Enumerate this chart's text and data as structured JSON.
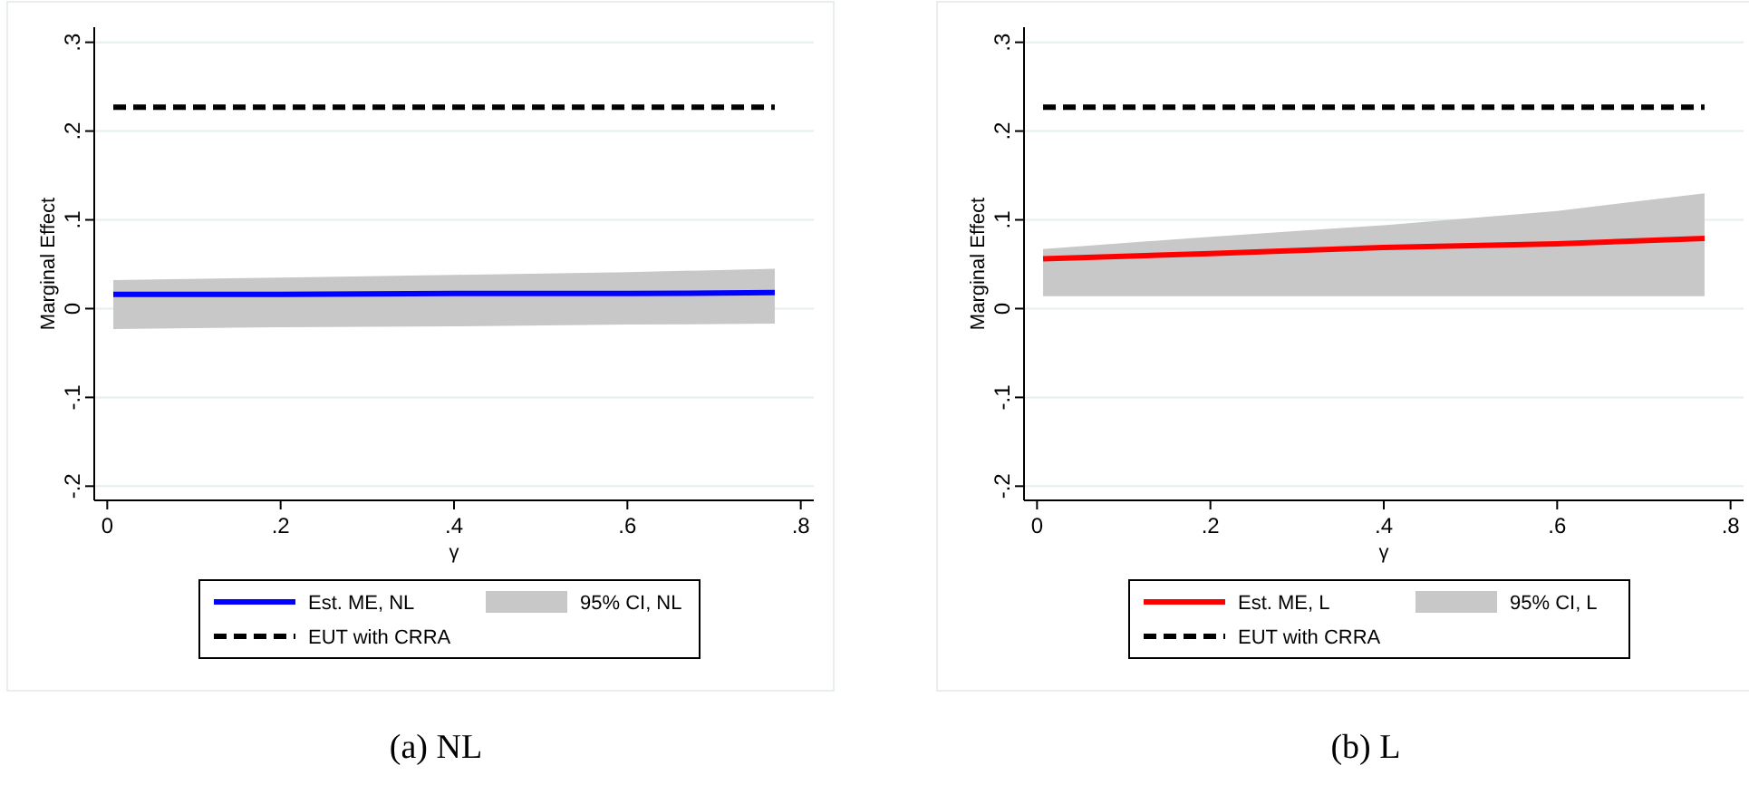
{
  "chart_data": [
    {
      "type": "line",
      "title": "(a) NL",
      "xlabel": "γ",
      "ylabel": "Marginal Effect",
      "annotations": [
        "95% CI, NL"
      ],
      "xlim": [
        -0.015,
        0.815
      ],
      "ylim": [
        -0.216,
        0.317
      ],
      "xticks": [
        {
          "value": 0,
          "label": "0"
        },
        {
          "value": 0.2,
          "label": ".2"
        },
        {
          "value": 0.4,
          "label": ".4"
        },
        {
          "value": 0.6,
          "label": ".6"
        },
        {
          "value": 0.8,
          "label": ".8"
        }
      ],
      "yticks": [
        {
          "value": -0.2,
          "label": "-.2"
        },
        {
          "value": -0.1,
          "label": "-.1"
        },
        {
          "value": 0,
          "label": "0"
        },
        {
          "value": 0.1,
          "label": ".1"
        },
        {
          "value": 0.2,
          "label": ".2"
        },
        {
          "value": 0.3,
          "label": ".3"
        }
      ],
      "grid": "y",
      "legend": "bottom",
      "x": [
        0.007,
        0.2,
        0.4,
        0.6,
        0.77
      ],
      "series": [
        {
          "name": "Est. ME, NL",
          "color": "#0000ff",
          "line_style": "solid",
          "values": [
            0.016,
            0.016,
            0.017,
            0.017,
            0.018
          ],
          "lower": [
            -0.023,
            -0.021,
            -0.02,
            -0.018,
            -0.017
          ],
          "upper": [
            0.032,
            0.035,
            0.038,
            0.041,
            0.045
          ]
        },
        {
          "name": "EUT with CRRA",
          "color": "#000000",
          "line_style": "dashed",
          "values": [
            0.227,
            0.227,
            0.227,
            0.227,
            0.227
          ]
        }
      ]
    },
    {
      "type": "line",
      "title": "(b) L",
      "xlabel": "γ",
      "ylabel": "Marginal Effect",
      "annotations": [
        "95% CI, L"
      ],
      "xlim": [
        -0.015,
        0.815
      ],
      "ylim": [
        -0.216,
        0.317
      ],
      "xticks": [
        {
          "value": 0,
          "label": "0"
        },
        {
          "value": 0.2,
          "label": ".2"
        },
        {
          "value": 0.4,
          "label": ".4"
        },
        {
          "value": 0.6,
          "label": ".6"
        },
        {
          "value": 0.8,
          "label": ".8"
        }
      ],
      "yticks": [
        {
          "value": -0.2,
          "label": "-.2"
        },
        {
          "value": -0.1,
          "label": "-.1"
        },
        {
          "value": 0,
          "label": "0"
        },
        {
          "value": 0.1,
          "label": ".1"
        },
        {
          "value": 0.2,
          "label": ".2"
        },
        {
          "value": 0.3,
          "label": ".3"
        }
      ],
      "grid": "y",
      "legend": "bottom",
      "x": [
        0.007,
        0.2,
        0.4,
        0.6,
        0.77
      ],
      "series": [
        {
          "name": "Est. ME, L",
          "color": "#ff0000",
          "line_style": "solid",
          "values": [
            0.056,
            0.062,
            0.069,
            0.073,
            0.079
          ],
          "lower": [
            0.014,
            0.014,
            0.014,
            0.014,
            0.014
          ],
          "upper": [
            0.067,
            0.081,
            0.094,
            0.11,
            0.13
          ]
        },
        {
          "name": "EUT with CRRA",
          "color": "#000000",
          "line_style": "dashed",
          "values": [
            0.227,
            0.227,
            0.227,
            0.227,
            0.227
          ]
        }
      ]
    }
  ]
}
